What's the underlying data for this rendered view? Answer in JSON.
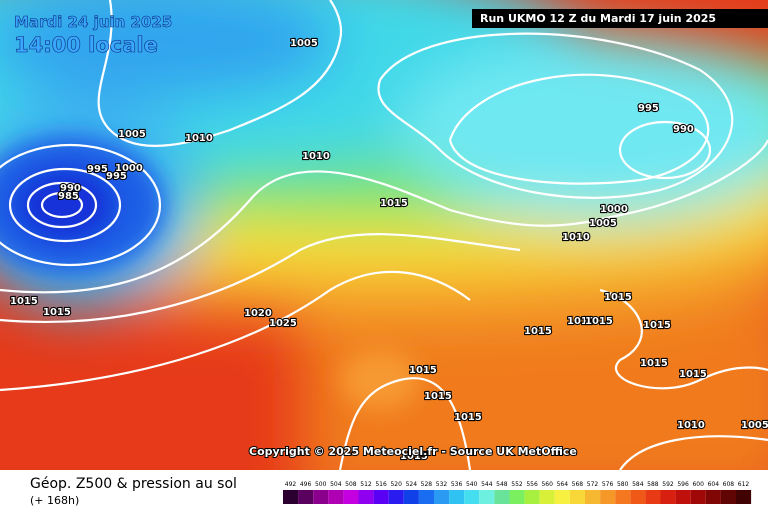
{
  "header": {
    "date": "Mardi 24 juin 2025",
    "time": "14:00 locale",
    "run": "Run UKMO 12 Z du Mardi 17 juin 2025"
  },
  "isobar_labels": [
    "1005",
    "1005",
    "1010",
    "1010",
    "995",
    "1000",
    "995",
    "990",
    "985",
    "1015",
    "995",
    "990",
    "1000",
    "1005",
    "1010",
    "1015",
    "1015",
    "1015",
    "1020",
    "1025",
    "1015",
    "1010",
    "1015",
    "1015",
    "1015",
    "1015",
    "1015",
    "1015",
    "1015",
    "1010",
    "1005",
    "1015"
  ],
  "copyright": "Copyright © 2025 Meteociel.fr - Source UK MetOffice",
  "footer": {
    "title": "Géop. Z500 & pression au sol",
    "lead": "(+ 168h)"
  },
  "legend": {
    "values": [
      492,
      496,
      500,
      504,
      508,
      512,
      516,
      520,
      524,
      528,
      532,
      536,
      540,
      544,
      548,
      552,
      556,
      560,
      564,
      568,
      572,
      576,
      580,
      584,
      588,
      592,
      596,
      600,
      604,
      608,
      612
    ]
  }
}
